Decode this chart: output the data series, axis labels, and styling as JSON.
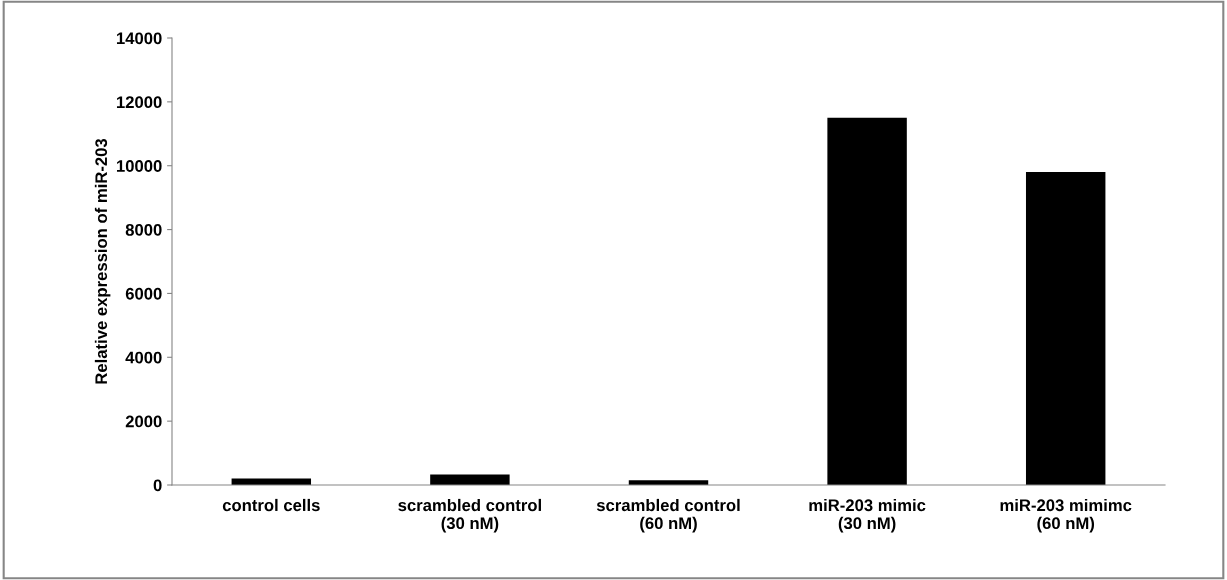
{
  "chart_data": {
    "type": "bar",
    "ylabel": "Relative expression of miR-203",
    "categories": [
      "control cells",
      "scrambled control\n(30 nM)",
      "scrambled control\n(60 nM)",
      "miR-203 mimic\n(30 nM)",
      "miR-203 mimimc\n(60 nM)"
    ],
    "values": [
      200,
      330,
      150,
      11500,
      9800
    ],
    "color": "#000000",
    "ylim": [
      0,
      14000
    ],
    "yticks": [
      0,
      2000,
      4000,
      6000,
      8000,
      10000,
      12000,
      14000
    ],
    "grid": false
  }
}
